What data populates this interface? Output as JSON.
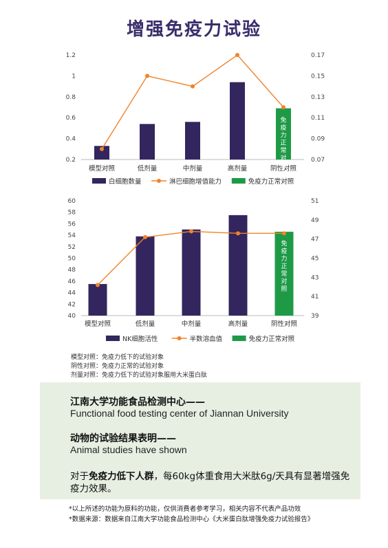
{
  "page": {
    "title": "增强免疫力试验"
  },
  "chart_data": [
    {
      "type": "bar",
      "categories": [
        "模型对照",
        "低剂量",
        "中剂量",
        "高剂量",
        "阴性对照"
      ],
      "series": [
        {
          "name": "白细胞数量",
          "kind": "bar",
          "axis": "left",
          "values": [
            0.33,
            0.54,
            0.56,
            0.94,
            null
          ],
          "color": "#33265e"
        },
        {
          "name": "淋巴细胞增值能力",
          "kind": "line",
          "axis": "right",
          "values": [
            0.08,
            0.15,
            0.14,
            0.17,
            0.12
          ],
          "color": "#f0832a"
        },
        {
          "name": "免疫力正常对照",
          "kind": "bar",
          "axis": "left",
          "values": [
            null,
            null,
            null,
            null,
            0.69
          ],
          "color": "#1e9a47",
          "bar_label": "免疫力正常对照"
        }
      ],
      "y_left": {
        "ylim": [
          0.2,
          1.2
        ],
        "ticks": [
          "0.2",
          "0.4",
          "0.6",
          "0.8",
          "1",
          "1.2"
        ]
      },
      "y_right": {
        "ylim": [
          0.07,
          0.17
        ],
        "ticks": [
          "0.07",
          "0.09",
          "0.11",
          "0.13",
          "0.15",
          "0.17"
        ]
      },
      "grid": false,
      "legend_position": "bottom"
    },
    {
      "type": "bar",
      "categories": [
        "模型对照",
        "低剂量",
        "中剂量",
        "高剂量",
        "阴性对照"
      ],
      "series": [
        {
          "name": "NK细胞活性",
          "kind": "bar",
          "axis": "left",
          "values": [
            45.5,
            53.8,
            55.0,
            57.5,
            null
          ],
          "color": "#33265e"
        },
        {
          "name": "半数溶血值",
          "kind": "line",
          "axis": "right",
          "values": [
            42.2,
            47.2,
            47.8,
            47.6,
            47.6
          ],
          "color": "#f0832a"
        },
        {
          "name": "免疫力正常对照",
          "kind": "bar",
          "axis": "left",
          "values": [
            null,
            null,
            null,
            null,
            54.6
          ],
          "color": "#1e9a47",
          "bar_label": "免疫力正常对照"
        }
      ],
      "y_left": {
        "ylim": [
          40,
          60
        ],
        "ticks": [
          "40",
          "42",
          "44",
          "46",
          "48",
          "50",
          "52",
          "54",
          "56",
          "58",
          "60"
        ]
      },
      "y_right": {
        "ylim": [
          39,
          51
        ],
        "ticks": [
          "39",
          "41",
          "43",
          "45",
          "47",
          "49",
          "51"
        ]
      },
      "grid": false,
      "legend_position": "bottom"
    }
  ],
  "notes": [
    "模型对照：免疫力低下的试验对象",
    "阴性对照：免疫力正常的试验对象",
    "剂量对照：免疫力低下的试验对象服用大米蛋白肽"
  ],
  "panel": {
    "center_cn": "江南大学功能食品检测中心——",
    "center_en": "Functional food testing center of Jiannan University",
    "studies_cn": "动物的试验结果表明——",
    "studies_en": "Animal studies have shown",
    "result_prefix": "对于",
    "result_bold": "免疫力低下人群",
    "result_rest": "，每60kg体重食用大米肽6g/天具有显著增强免疫力效果。"
  },
  "footnotes": [
    "*以上所述的功能为原料的功能，仅供消费者参考学习，相关内容不代表产品功效",
    "*数据来源：数据来自江南大学功能食品检测中心《大米蛋白肽增强免疫力试验报告》"
  ]
}
